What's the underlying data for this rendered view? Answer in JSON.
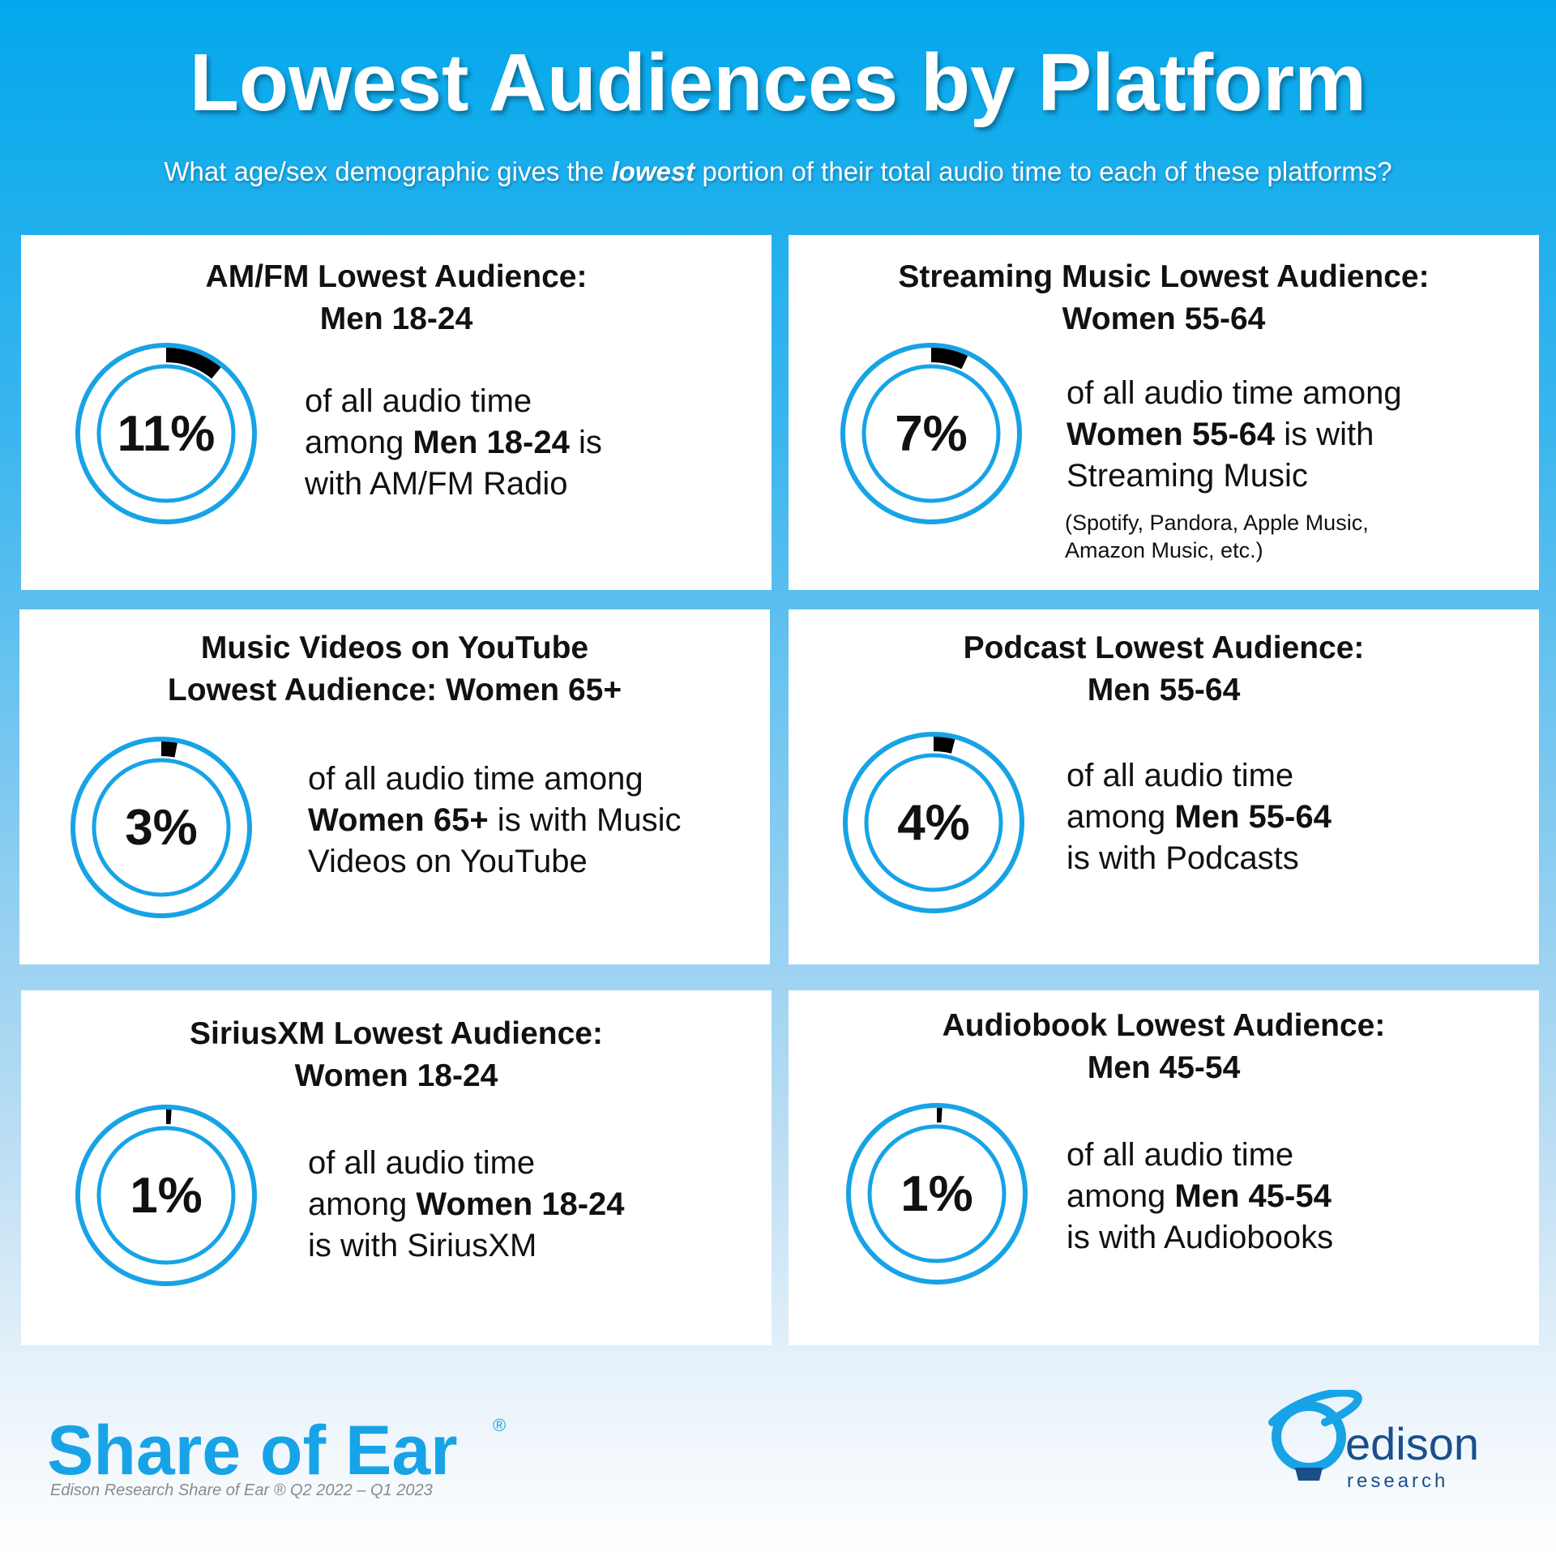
{
  "header": {
    "title": "Lowest Audiences by Platform",
    "subtitle_before": "What age/sex demographic gives the ",
    "subtitle_emphasis": "lowest",
    "subtitle_after": " portion of their total audio time to each of these platforms?"
  },
  "colors": {
    "ring": "#17a3e6",
    "segment": "#000000",
    "background_top": "#03a8ec"
  },
  "cards": [
    {
      "title_line1": "AM/FM Lowest Audience:",
      "title_line2": "Men 18-24",
      "value": 11,
      "value_label": "11%",
      "desc_line1": "of all audio time",
      "desc_line2_pre": "among ",
      "desc_line2_bold": "Men 18-24",
      "desc_line2_post": " is",
      "desc_line3": "with AM/FM Radio"
    },
    {
      "title_line1": "Streaming Music Lowest Audience:",
      "title_line2": "Women 55-64",
      "value": 7,
      "value_label": "7%",
      "desc_line1": "of all audio time among",
      "desc_line2_pre": "",
      "desc_line2_bold": "Women 55-64",
      "desc_line2_post": " is with",
      "desc_line3": "Streaming Music",
      "note_line1": "(Spotify, Pandora, Apple Music,",
      "note_line2": "Amazon Music, etc.)"
    },
    {
      "title_line1": "Music Videos on YouTube",
      "title_line2": "Lowest Audience: Women 65+",
      "value": 3,
      "value_label": "3%",
      "desc_line1": "of all audio time among",
      "desc_line2_pre": "",
      "desc_line2_bold": "Women 65+",
      "desc_line2_post": " is with Music",
      "desc_line3": "Videos on YouTube"
    },
    {
      "title_line1": "Podcast Lowest Audience:",
      "title_line2": "Men 55-64",
      "value": 4,
      "value_label": "4%",
      "desc_line1": "of all audio time",
      "desc_line2_pre": "among ",
      "desc_line2_bold": "Men 55-64",
      "desc_line2_post": "",
      "desc_line3": "is with Podcasts"
    },
    {
      "title_line1": "SiriusXM Lowest Audience:",
      "title_line2": "Women 18-24",
      "value": 1,
      "value_label": "1%",
      "desc_line1": "of all audio time",
      "desc_line2_pre": "among ",
      "desc_line2_bold": "Women 18-24",
      "desc_line2_post": "",
      "desc_line3": "is with SiriusXM"
    },
    {
      "title_line1": "Audiobook Lowest Audience:",
      "title_line2": "Men 45-54",
      "value": 1,
      "value_label": "1%",
      "desc_line1": "of all audio time",
      "desc_line2_pre": "among ",
      "desc_line2_bold": "Men 45-54",
      "desc_line2_post": "",
      "desc_line3": "is with Audiobooks"
    }
  ],
  "chart_data": {
    "type": "pie",
    "categories": [
      "AM/FM Radio (Men 18-24)",
      "Streaming Music (Women 55-64)",
      "Music Videos on YouTube (Women 65+)",
      "Podcasts (Men 55-64)",
      "SiriusXM (Women 18-24)",
      "Audiobooks (Men 45-54)"
    ],
    "values": [
      11,
      7,
      3,
      4,
      1,
      1
    ],
    "unit": "%"
  },
  "footer": {
    "brand": "Share of Ear",
    "reg_mark": "®",
    "source": "Edison Research Share of Ear ® Q2 2022 – Q1 2023",
    "logo_word": "edison",
    "logo_sub": "research"
  }
}
